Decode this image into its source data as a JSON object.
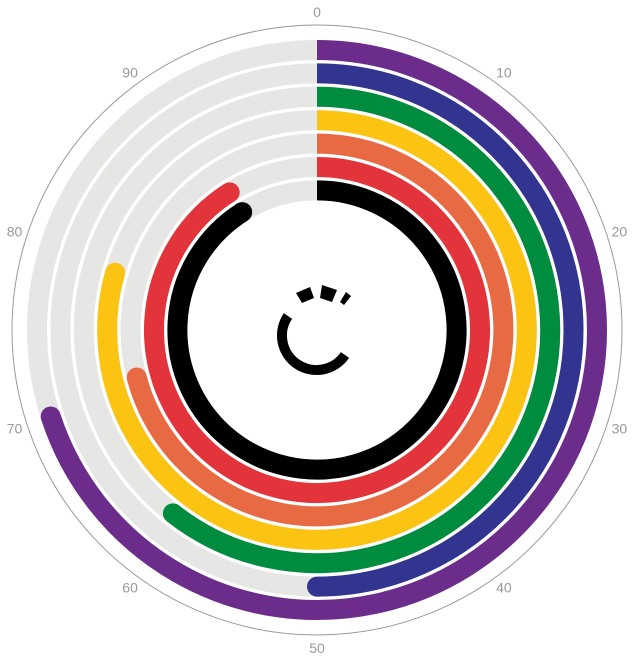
{
  "chart_data": {
    "type": "radial-bar",
    "title": "",
    "axis": {
      "min": 0,
      "max": 100,
      "ticks": [
        0,
        10,
        20,
        30,
        40,
        50,
        60,
        70,
        80,
        90
      ]
    },
    "tick_labels": [
      "0",
      "10",
      "20",
      "30",
      "40",
      "50",
      "60",
      "70",
      "80",
      "90"
    ],
    "track_color": "#e6e6e5",
    "series": [
      {
        "name": "purple",
        "value": 70,
        "color": "#6b2c8b"
      },
      {
        "name": "navy",
        "value": 50,
        "color": "#32358f"
      },
      {
        "name": "green",
        "value": 60.6,
        "color": "#008c3f"
      },
      {
        "name": "yellow",
        "value": 79.4,
        "color": "#fbc312"
      },
      {
        "name": "orange",
        "value": 70.9,
        "color": "#e86a43"
      },
      {
        "name": "red",
        "value": 91,
        "color": "#e2343a"
      },
      {
        "name": "black",
        "value": 91,
        "color": "#000000"
      }
    ],
    "grid": false,
    "legend": "none"
  }
}
